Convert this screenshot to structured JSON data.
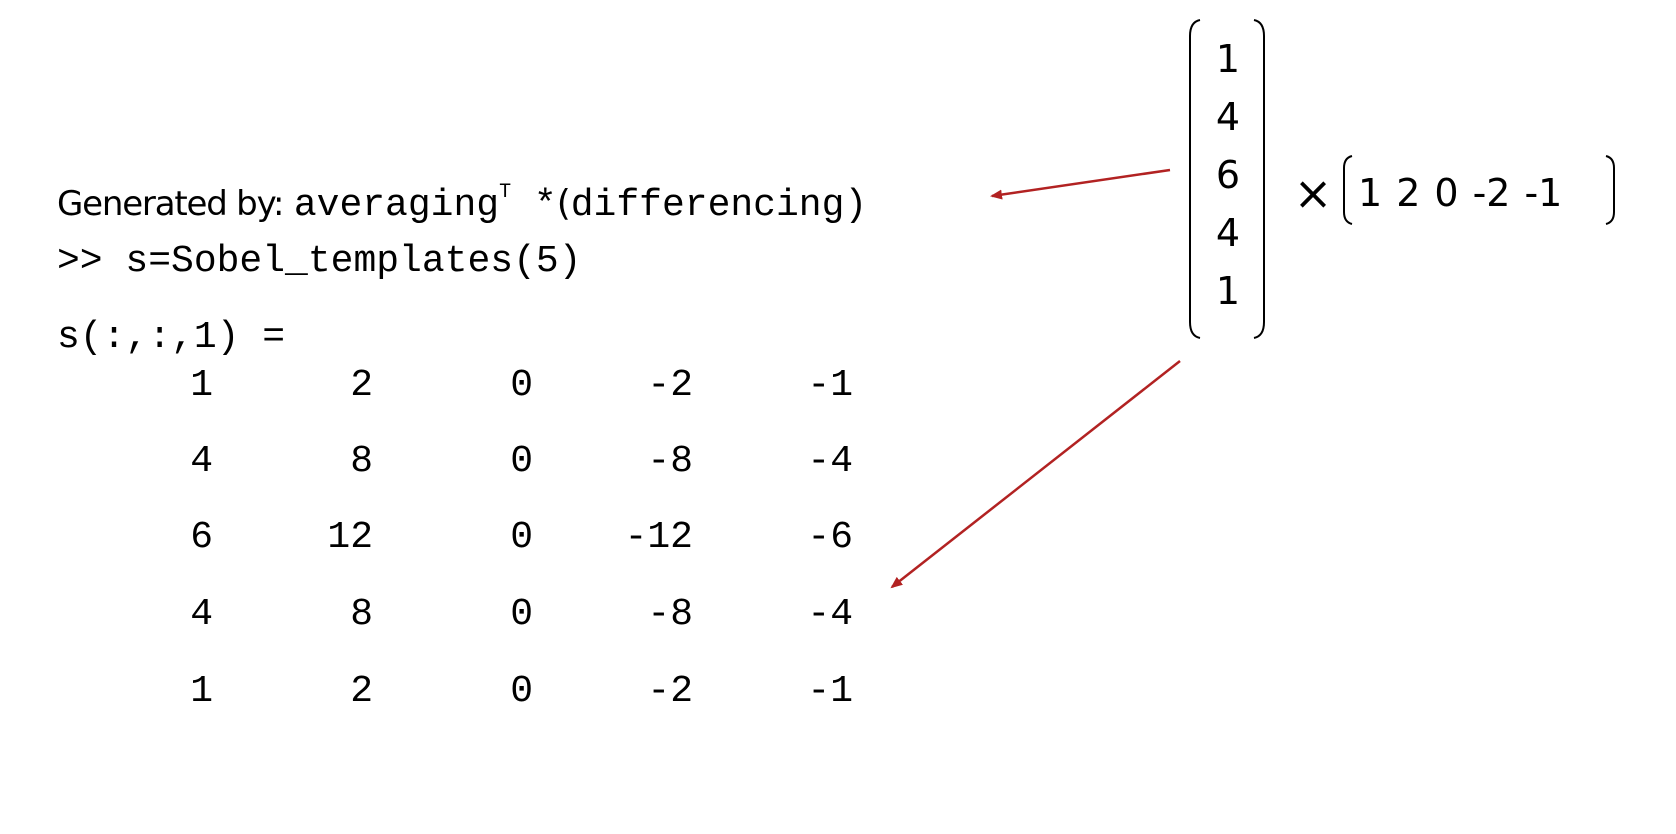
{
  "generated_by": {
    "label": "Generated by:",
    "expr_left": "averaging",
    "superscript": "T",
    "operator": " *",
    "open_paren": "(",
    "expr_right": "differencing)"
  },
  "command": ">> s=Sobel_templates(5)",
  "variable_label": "s(:,:,1) =",
  "matrix": [
    [
      "1",
      "2",
      "0",
      "-2",
      "-1"
    ],
    [
      "4",
      "8",
      "0",
      "-8",
      "-4"
    ],
    [
      "6",
      "12",
      "0",
      "-12",
      "-6"
    ],
    [
      "4",
      "8",
      "0",
      "-8",
      "-4"
    ],
    [
      "1",
      "2",
      "0",
      "-2",
      "-1"
    ]
  ],
  "column_vector": [
    "1",
    "4",
    "6",
    "4",
    "1"
  ],
  "times_symbol": "×",
  "row_vector": [
    "1",
    "2",
    "0",
    "-2",
    "-1"
  ],
  "colors": {
    "arrow": "#b22222",
    "text": "#000000",
    "background": "#ffffff"
  }
}
